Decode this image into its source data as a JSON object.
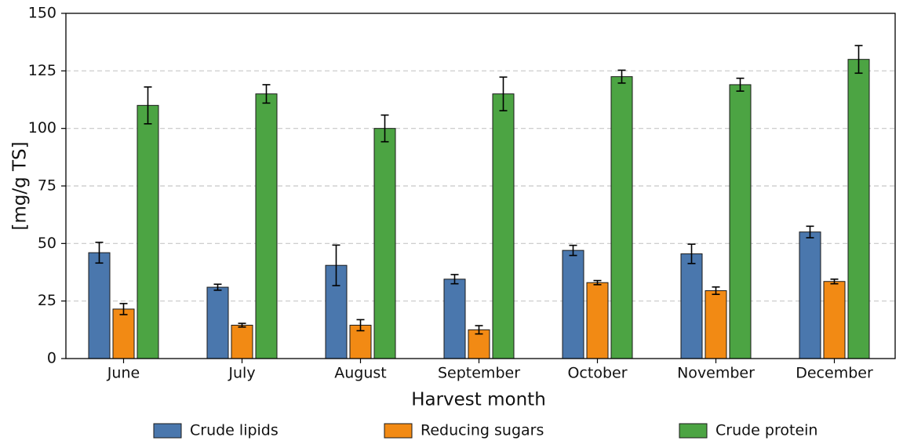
{
  "chart_data": {
    "type": "bar",
    "title": "",
    "xlabel": "Harvest month",
    "ylabel": "[mg/g TS]",
    "ylim": [
      0,
      150
    ],
    "yticks": [
      0,
      25,
      50,
      75,
      100,
      125,
      150
    ],
    "grid": "y-dashed",
    "legend_position": "bottom",
    "categories": [
      "June",
      "July",
      "August",
      "September",
      "October",
      "November",
      "December"
    ],
    "series": [
      {
        "name": "Crude lipids",
        "color": "#4a77ad",
        "values": [
          46,
          31,
          40.5,
          34.5,
          47,
          45.5,
          55
        ],
        "errors": [
          4.5,
          1.3,
          8.8,
          2.0,
          2.2,
          4.2,
          2.5
        ]
      },
      {
        "name": "Reducing sugars",
        "color": "#f28a14",
        "values": [
          21.5,
          14.5,
          14.5,
          12.5,
          33,
          29.5,
          33.5
        ],
        "errors": [
          2.4,
          0.8,
          2.4,
          1.8,
          0.9,
          1.6,
          1.0
        ]
      },
      {
        "name": "Crude protein",
        "color": "#4ca443",
        "values": [
          110,
          115,
          100,
          115,
          122.5,
          119,
          130
        ],
        "errors": [
          8.0,
          4.0,
          5.8,
          7.3,
          2.8,
          2.8,
          6.0
        ]
      }
    ]
  }
}
